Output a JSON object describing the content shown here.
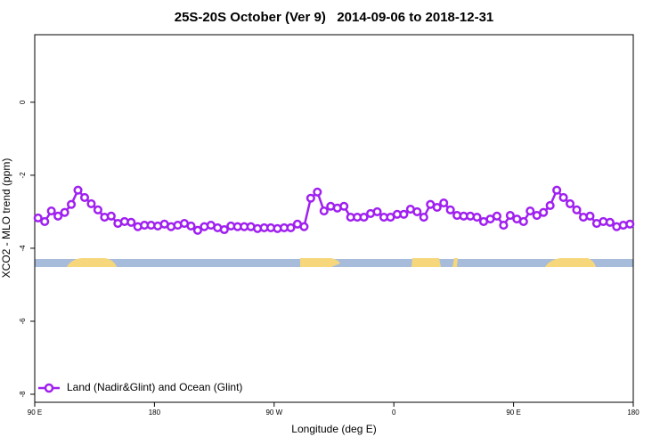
{
  "chart_data": {
    "type": "line",
    "title": "25S-20S October (Ver 9)   2014-09-06 to 2018-12-31",
    "x_label": "Longitude (deg E)",
    "y_label": "XCO2 - MLO trend (ppm)",
    "xlim": [
      90,
      540
    ],
    "ylim": [
      -8.22,
      1.85
    ],
    "xticks": [
      {
        "value": 90,
        "label": "90 E"
      },
      180,
      {
        "value": 270,
        "label": "90 W"
      },
      {
        "value": 360,
        "label": "0"
      },
      {
        "value": 450,
        "label": "90 E"
      },
      {
        "value": 540,
        "label": "180"
      }
    ],
    "yticks": [
      -8,
      -6,
      -4,
      -2,
      0
    ],
    "legend": "bottom-left",
    "x": [
      92.5,
      97.5,
      102.5,
      107.5,
      112.5,
      117.5,
      122.5,
      127.5,
      132.5,
      137.5,
      142.5,
      147.5,
      152.5,
      157.5,
      162.5,
      167.5,
      172.5,
      177.5,
      182.5,
      187.5,
      192.5,
      197.5,
      202.5,
      207.5,
      212.5,
      217.5,
      222.5,
      227.5,
      232.5,
      237.5,
      242.5,
      247.5,
      252.5,
      257.5,
      262.5,
      267.5,
      272.5,
      277.5,
      282.5,
      287.5,
      292.5,
      297.5,
      302.5,
      307.5,
      312.5,
      317.5,
      322.5,
      327.5,
      332.5,
      337.5,
      342.5,
      347.5,
      352.5,
      357.5,
      362.5,
      367.5,
      372.5,
      377.5,
      382.5,
      387.5,
      392.5,
      397.5,
      402.5,
      407.5,
      412.5,
      417.5,
      422.5,
      427.5,
      432.5,
      437.5,
      442.5,
      447.5,
      452.5,
      457.5,
      462.5,
      467.5,
      472.5,
      477.5,
      482.5,
      487.5,
      492.5,
      497.5,
      502.5,
      507.5,
      512.5,
      517.5,
      522.5,
      527.5,
      532.5,
      537.5
    ],
    "series": [
      {
        "name": "Land (Nadir&Glint) and Ocean (Glint)",
        "color": "#a020f0",
        "values": [
          -3.17,
          -3.27,
          -2.98,
          -3.12,
          -3.02,
          -2.8,
          -2.41,
          -2.61,
          -2.78,
          -2.95,
          -3.15,
          -3.12,
          -3.32,
          -3.27,
          -3.29,
          -3.41,
          -3.37,
          -3.37,
          -3.39,
          -3.34,
          -3.41,
          -3.37,
          -3.32,
          -3.39,
          -3.51,
          -3.41,
          -3.37,
          -3.44,
          -3.49,
          -3.39,
          -3.41,
          -3.41,
          -3.41,
          -3.46,
          -3.44,
          -3.44,
          -3.46,
          -3.44,
          -3.44,
          -3.34,
          -3.41,
          -2.63,
          -2.46,
          -2.98,
          -2.85,
          -2.9,
          -2.85,
          -3.15,
          -3.15,
          -3.15,
          -3.05,
          -3.0,
          -3.15,
          -3.15,
          -3.07,
          -3.07,
          -2.93,
          -3.0,
          -3.15,
          -2.8,
          -2.88,
          -2.76,
          -2.95,
          -3.1,
          -3.12,
          -3.12,
          -3.15,
          -3.27,
          -3.2,
          -3.12,
          -3.37,
          -3.1,
          -3.2,
          -3.27,
          -2.98,
          -3.1,
          -3.02,
          -2.83,
          -2.41,
          -2.61,
          -2.78,
          -2.95,
          -3.15,
          -3.12,
          -3.32,
          -3.27,
          -3.29,
          -3.41,
          -3.37,
          -3.34
        ]
      }
    ]
  }
}
